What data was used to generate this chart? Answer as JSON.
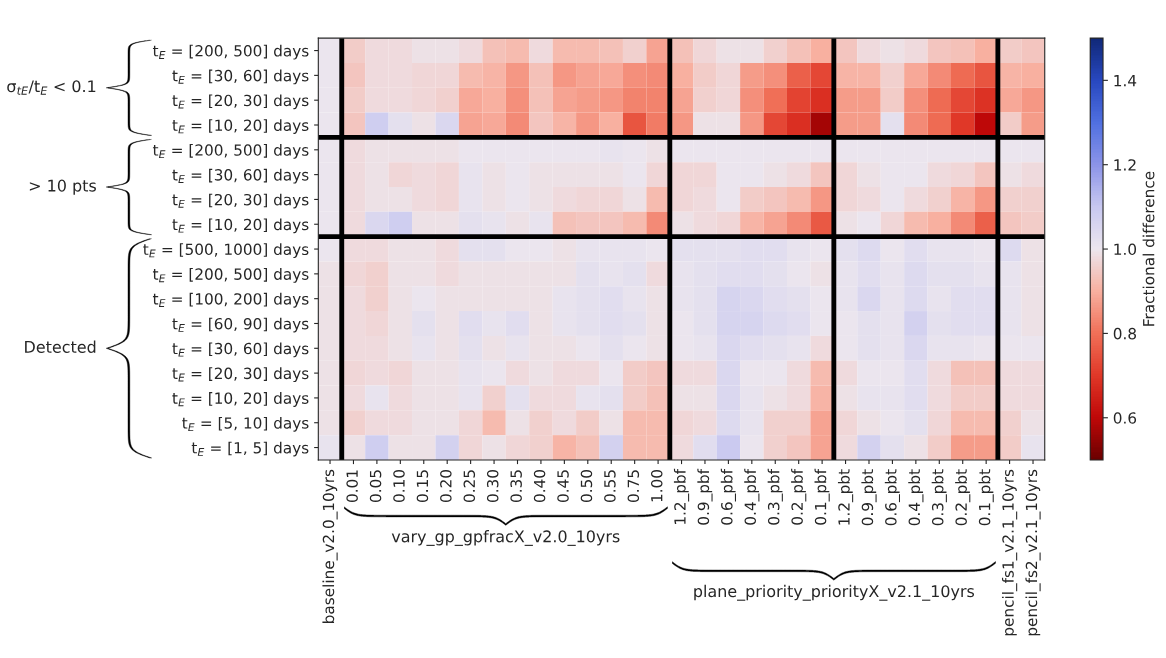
{
  "chart_data": {
    "type": "heatmap",
    "categories": [
      "baseline_v2.0_10yrs",
      "0.01",
      "0.05",
      "0.10",
      "0.15",
      "0.20",
      "0.25",
      "0.30",
      "0.35",
      "0.40",
      "0.45",
      "0.50",
      "0.55",
      "0.75",
      "1.00",
      "1.2_pbf",
      "0.9_pbf",
      "0.6_pbf",
      "0.4_pbf",
      "0.3_pbf",
      "0.2_pbf",
      "0.1_pbf",
      "1.2_pbt",
      "0.9_pbt",
      "0.6_pbt",
      "0.4_pbt",
      "0.3_pbt",
      "0.2_pbt",
      "0.1_pbt",
      "pencil_fs1_v2.1_10yrs",
      "pencil_fs2_v2.1_10yrs"
    ],
    "y_categories": [
      "t$_{E}$ = [200, 500] days",
      "t$_{E}$ = [30, 60] days",
      "t$_{E}$ = [20, 30] days",
      "t$_{E}$ = [10, 20] days",
      "t$_{E}$ = [200, 500] days",
      "t$_{E}$ = [30, 60] days",
      "t$_{E}$ = [20, 30] days",
      "t$_{E}$ = [10, 20] days",
      "t$_{E}$ = [500, 1000] days",
      "t$_{E}$ = [200, 500] days",
      "t$_{E}$ = [100, 200] days",
      "t$_{E}$ = [60, 90] days",
      "t$_{E}$ = [30, 60] days",
      "t$_{E}$ = [20, 30] days",
      "t$_{E}$ = [10, 20] days",
      "t$_{E}$ = [5, 10] days",
      "t$_{E}$ = [1, 5] days"
    ],
    "cells": [
      [
        1.0,
        0.95,
        0.98,
        0.98,
        0.99,
        0.99,
        0.98,
        0.93,
        0.92,
        0.98,
        0.92,
        0.92,
        0.93,
        0.96,
        0.88,
        0.93,
        0.97,
        0.99,
        0.99,
        0.96,
        0.93,
        0.9,
        0.94,
        0.98,
        0.99,
        0.98,
        0.94,
        0.93,
        0.9,
        0.95,
        0.94
      ],
      [
        1.0,
        0.94,
        0.98,
        0.98,
        0.97,
        0.97,
        0.92,
        0.91,
        0.86,
        0.93,
        0.86,
        0.88,
        0.89,
        0.85,
        0.84,
        0.9,
        0.95,
        0.97,
        0.87,
        0.85,
        0.77,
        0.73,
        0.91,
        0.91,
        0.96,
        0.89,
        0.84,
        0.79,
        0.75,
        0.91,
        0.9
      ],
      [
        1.0,
        0.95,
        0.98,
        0.98,
        0.97,
        0.96,
        0.89,
        0.9,
        0.85,
        0.93,
        0.88,
        0.87,
        0.86,
        0.83,
        0.83,
        0.88,
        0.96,
        0.97,
        0.85,
        0.8,
        0.72,
        0.68,
        0.87,
        0.87,
        0.95,
        0.85,
        0.79,
        0.73,
        0.69,
        0.89,
        0.86
      ],
      [
        1.0,
        0.94,
        1.08,
        1.02,
        0.99,
        1.05,
        0.88,
        0.89,
        0.84,
        0.94,
        0.91,
        0.86,
        0.9,
        0.75,
        0.82,
        0.86,
        0.99,
        0.99,
        0.86,
        0.73,
        0.68,
        0.57,
        0.87,
        0.87,
        1.02,
        0.84,
        0.79,
        0.7,
        0.6,
        0.95,
        0.87
      ],
      [
        1.0,
        0.98,
        0.99,
        0.99,
        0.99,
        0.99,
        1.0,
        1.0,
        1.0,
        1.0,
        1.0,
        1.0,
        1.01,
        1.0,
        0.99,
        1.0,
        1.0,
        1.0,
        1.0,
        1.0,
        1.0,
        1.0,
        1.0,
        1.0,
        1.0,
        1.0,
        1.0,
        1.0,
        1.0,
        1.0,
        1.0
      ],
      [
        1.0,
        0.98,
        0.99,
        0.97,
        0.98,
        0.97,
        1.01,
        0.99,
        1.0,
        0.99,
        0.99,
        0.99,
        0.99,
        1.0,
        0.97,
        0.97,
        0.97,
        1.0,
        1.0,
        0.99,
        0.98,
        0.94,
        0.97,
        0.99,
        1.0,
        1.0,
        0.98,
        0.97,
        0.94,
        0.99,
        0.98
      ],
      [
        1.0,
        0.98,
        0.99,
        0.99,
        0.98,
        0.97,
        1.01,
        0.99,
        1.0,
        0.99,
        0.98,
        0.97,
        0.97,
        0.99,
        0.92,
        0.97,
        0.98,
        1.0,
        0.95,
        0.94,
        0.92,
        0.86,
        0.97,
        0.98,
        1.0,
        0.98,
        0.96,
        0.91,
        0.86,
        0.96,
        0.96
      ],
      [
        1.0,
        0.98,
        1.05,
        1.08,
        0.99,
        0.99,
        1.02,
        1.01,
        0.99,
        1.01,
        0.93,
        0.94,
        0.94,
        0.92,
        0.84,
        0.99,
        0.98,
        0.97,
        0.91,
        0.88,
        0.84,
        0.76,
        0.99,
        1.0,
        0.97,
        0.92,
        0.9,
        0.84,
        0.77,
        0.94,
        0.95
      ],
      [
        1.0,
        0.98,
        0.98,
        0.99,
        0.99,
        0.98,
        1.02,
        1.02,
        1.0,
        1.0,
        0.99,
        1.01,
        1.01,
        1.01,
        1.0,
        1.02,
        1.02,
        1.02,
        1.03,
        1.03,
        1.01,
        1.0,
        1.02,
        1.04,
        1.0,
        1.03,
        1.01,
        1.01,
        1.0,
        1.04,
        0.99
      ],
      [
        0.99,
        0.97,
        0.96,
        0.99,
        0.99,
        0.98,
        0.99,
        0.99,
        0.99,
        0.99,
        0.99,
        1.02,
        1.01,
        1.02,
        0.98,
        1.01,
        1.02,
        1.03,
        1.03,
        1.02,
        1.0,
        0.99,
        1.01,
        1.03,
        1.01,
        1.04,
        1.02,
        1.02,
        1.01,
        1.01,
        0.99
      ],
      [
        0.99,
        0.98,
        0.96,
        0.99,
        1.0,
        0.99,
        0.99,
        0.99,
        0.99,
        0.99,
        1.01,
        1.02,
        1.03,
        1.01,
        0.99,
        1.01,
        1.02,
        1.06,
        1.05,
        1.03,
        1.02,
        1.0,
        1.01,
        1.05,
        1.01,
        1.04,
        1.01,
        1.03,
        1.03,
        1.01,
        0.99
      ],
      [
        0.99,
        0.98,
        0.97,
        0.99,
        1.02,
        0.99,
        1.03,
        1.01,
        1.03,
        0.99,
        1.01,
        1.02,
        1.03,
        1.02,
        0.99,
        1.0,
        1.02,
        1.06,
        1.06,
        1.04,
        1.03,
        1.0,
        1.0,
        1.02,
        1.01,
        1.07,
        1.02,
        1.03,
        1.03,
        1.01,
        0.99
      ],
      [
        0.99,
        0.98,
        0.98,
        0.99,
        1.01,
        0.99,
        1.02,
        0.99,
        1.01,
        0.99,
        0.99,
        1.0,
        1.02,
        1.0,
        0.99,
        1.0,
        1.01,
        1.05,
        1.03,
        1.02,
        1.01,
        0.98,
        1.0,
        1.02,
        1.01,
        1.05,
        1.01,
        1.01,
        1.0,
        1.0,
        1.0
      ],
      [
        0.99,
        0.97,
        0.98,
        0.97,
        0.99,
        0.99,
        1.01,
        1.0,
        0.98,
        0.99,
        0.98,
        0.98,
        1.0,
        0.95,
        0.94,
        0.98,
        0.98,
        1.05,
        1.0,
        1.0,
        0.98,
        0.92,
        0.98,
        1.0,
        1.0,
        1.03,
        0.98,
        0.93,
        0.93,
        0.98,
        0.98
      ],
      [
        0.99,
        0.98,
        1.01,
        0.98,
        0.99,
        0.99,
        1.01,
        0.96,
        1.02,
        0.98,
        0.98,
        1.01,
        1.02,
        0.95,
        0.93,
        0.99,
        0.99,
        1.05,
        1.01,
        0.99,
        0.98,
        0.91,
        0.99,
        1.01,
        1.01,
        1.03,
        0.98,
        0.95,
        0.95,
        0.98,
        0.98
      ],
      [
        0.99,
        0.96,
        0.98,
        0.98,
        0.99,
        0.99,
        0.97,
        0.92,
        0.99,
        0.96,
        0.98,
        0.95,
        0.99,
        0.92,
        0.92,
        0.97,
        0.98,
        1.04,
        1.01,
        0.96,
        0.96,
        0.88,
        0.97,
        0.99,
        1.0,
        1.02,
        0.97,
        0.92,
        0.92,
        0.96,
        0.99
      ],
      [
        1.01,
        0.99,
        1.08,
        0.99,
        0.99,
        1.07,
        0.97,
        0.99,
        0.97,
        0.96,
        0.91,
        0.93,
        1.07,
        0.92,
        0.92,
        0.98,
        1.03,
        1.09,
        1.0,
        0.96,
        0.94,
        0.88,
        0.98,
        1.07,
        1.02,
        0.99,
        0.95,
        0.87,
        0.87,
        0.95,
        1.01
      ]
    ],
    "clim": [
      0.5,
      1.5
    ],
    "cticks": [
      0.6,
      0.8,
      {
        "value": 1.0,
        "label": "1.0"
      },
      1.2,
      1.4
    ],
    "clabel": "Fractional difference",
    "annotations": [
      "σ$_{tE}$/t$_{E}$ < 0.1",
      "> 10 pts",
      "Detected",
      "vary_gp_gpfracX_v2.0_10yrs",
      "plane_priority_priorityX_v2.1_10yrs"
    ]
  }
}
